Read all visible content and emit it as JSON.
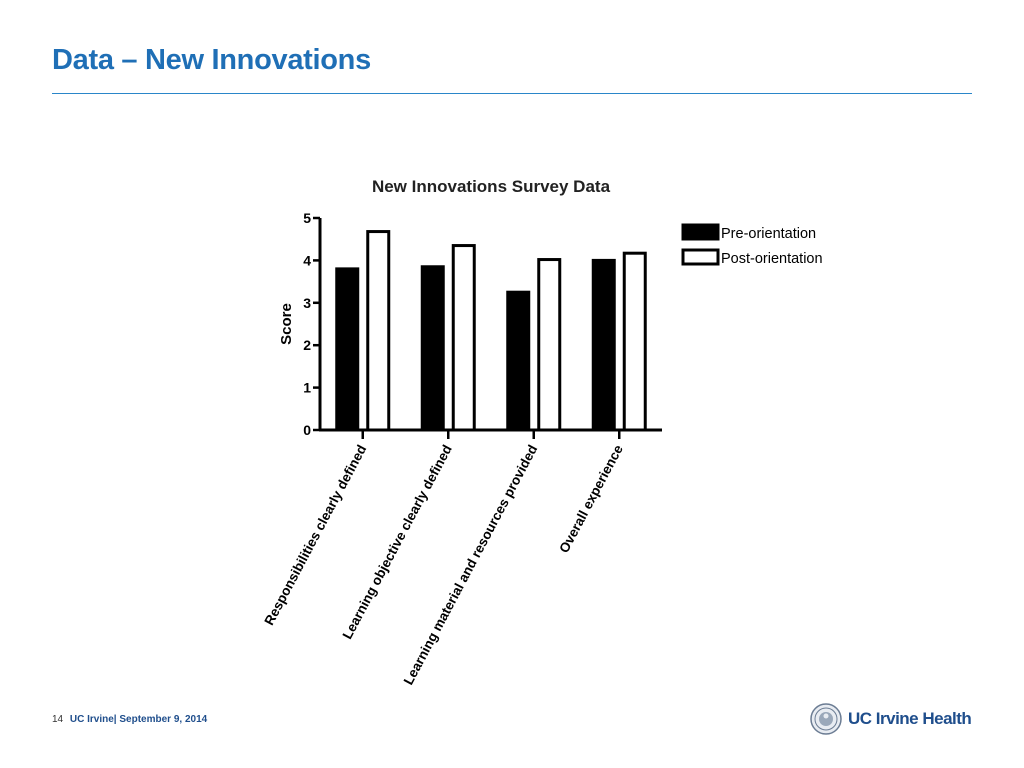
{
  "slide": {
    "title": "Data – New Innovations",
    "page_number": "14",
    "footer": "UC Irvine| September 9, 2014",
    "logo_text": "UC Irvine Health"
  },
  "colors": {
    "accent": "#1f6fb6",
    "footer_text": "#1f4e8c",
    "pre_fill": "#000000",
    "post_fill": "#ffffff"
  },
  "chart_data": {
    "type": "bar",
    "title": "New Innovations Survey Data",
    "xlabel": "",
    "ylabel": "Score",
    "ylim": [
      0,
      5
    ],
    "yticks": [
      0,
      1,
      2,
      3,
      4,
      5
    ],
    "categories": [
      "Responsibilities clearly defined",
      "Learning objective clearly defined",
      "Learning material and resources provided",
      "Overall experience"
    ],
    "series": [
      {
        "name": "Pre-orientation",
        "values": [
          3.8,
          3.85,
          3.25,
          4.0
        ]
      },
      {
        "name": "Post-orientation",
        "values": [
          4.68,
          4.35,
          4.02,
          4.17
        ]
      }
    ],
    "legend_position": "right",
    "grid": false
  }
}
